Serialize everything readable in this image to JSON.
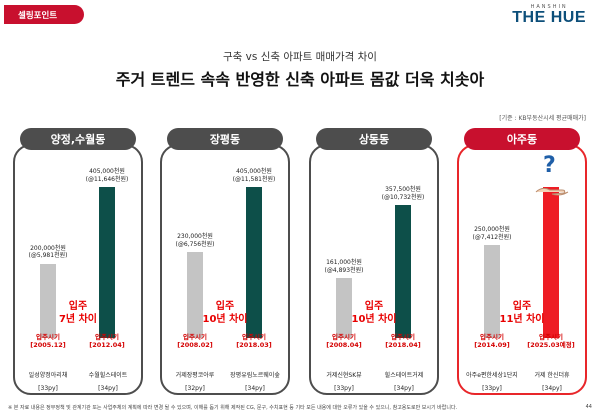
{
  "header": {
    "tag": "셀링포인트",
    "brand_sub": "HANSHIN",
    "brand_main": "THE HUE",
    "subtitle": "구축 vs 신축 아파트 매매가격 차이",
    "title": "주거 트렌드 속속 반영한 신축 아파트 몸값 더욱 치솟아",
    "source": "[기준 : KB부동산시세 평균매매가]"
  },
  "colors": {
    "accent_red": "#c8102e",
    "old_bar": "#c4c4c4",
    "new_bar": "#0d4f49",
    "highlight_bar": "#ee1c24",
    "head_dark": "#4d4d4d"
  },
  "panels": [
    {
      "region": "양정,수월동",
      "old": {
        "price": "200,000천원",
        "unit": "(@5,981천원)",
        "move_label": "입주시기",
        "move_date": "[2005.12]",
        "name": "일성양정아리채",
        "py": "[33py]",
        "value": 200000
      },
      "new": {
        "price": "405,000천원",
        "unit": "(@11,646천원)",
        "move_label": "입주시기",
        "move_date": "[2012.04]",
        "name": "수월힐스테이트",
        "py": "[34py]",
        "value": 405000
      },
      "gap_1": "입주",
      "gap_2": "7년 차이",
      "highlight": false
    },
    {
      "region": "장평동",
      "old": {
        "price": "230,000천원",
        "unit": "(@6,756천원)",
        "move_label": "입주시기",
        "move_date": "[2008.02]",
        "name": "거제장평코아루",
        "py": "[32py]",
        "value": 230000
      },
      "new": {
        "price": "405,000천원",
        "unit": "(@11,581천원)",
        "move_label": "입주시기",
        "move_date": "[2018.03]",
        "name": "장평유림노르웨이숲",
        "py": "[34py]",
        "value": 405000
      },
      "gap_1": "입주",
      "gap_2": "10년 차이",
      "highlight": false
    },
    {
      "region": "상동동",
      "old": {
        "price": "161,000천원",
        "unit": "(@4,893천원)",
        "move_label": "입주시기",
        "move_date": "[2008.04]",
        "name": "거제신현SK뷰",
        "py": "[33py]",
        "value": 161000
      },
      "new": {
        "price": "357,500천원",
        "unit": "(@10,732천원)",
        "move_label": "입주시기",
        "move_date": "[2018.04]",
        "name": "힐스테이트거제",
        "py": "[34py]",
        "value": 357500
      },
      "gap_1": "입주",
      "gap_2": "10년 차이",
      "highlight": false
    },
    {
      "region": "아주동",
      "old": {
        "price": "250,000천원",
        "unit": "(@7,412천원)",
        "move_label": "입주시기",
        "move_date": "[2014.09]",
        "name": "아주e편한세상1단지",
        "py": "[33py]",
        "value": 250000
      },
      "new": {
        "price": "",
        "unit": "",
        "move_label": "입주시기",
        "move_date": "[2025.03예정]",
        "name": "거제 한신더휴",
        "py": "[34py]",
        "value": null
      },
      "gap_1": "입주",
      "gap_2": "11년 차이",
      "highlight": true
    }
  ],
  "question_mark": "?",
  "footnote": "※ 본 자료 내용은 정부정책 및 관계기관 또는 사업주체의 계획에 따라 변경 될 수 있으며, 이해를 돕기 위해 제작된 CG, 문구, 수치표현 등 기타 모든 내용에 대한 오류가 있을 수 있으니, 참고용도로만 보시기 바랍니다.",
  "page_number": "44"
}
